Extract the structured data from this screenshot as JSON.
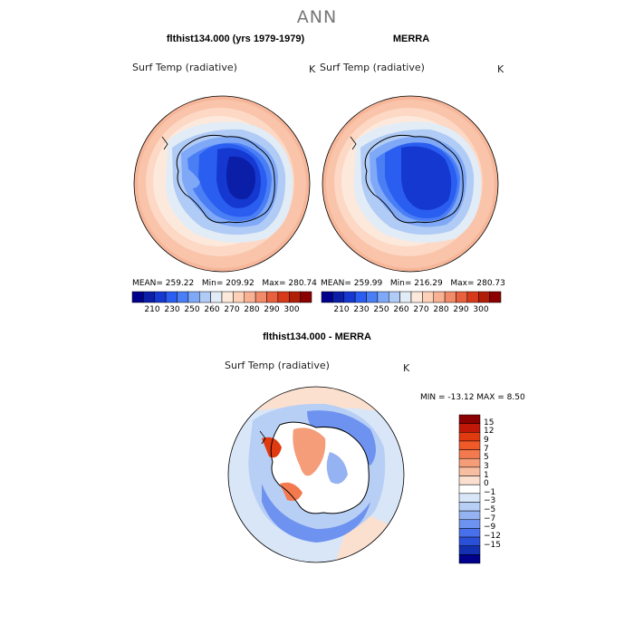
{
  "page": {
    "title": "ANN"
  },
  "panels": [
    {
      "title": "flthist134.000 (yrs 1979-1979)",
      "variable": "Surf Temp (radiative)",
      "units": "K",
      "mean_label": "MEAN=",
      "mean": "259.22",
      "min_label": "Min=",
      "min": "209.92",
      "max_label": "Max=",
      "max": "280.74"
    },
    {
      "title": "MERRA",
      "variable": "Surf Temp (radiative)",
      "units": "K",
      "mean_label": "MEAN=",
      "mean": "259.99",
      "min_label": "Min=",
      "min": "216.29",
      "max_label": "Max=",
      "max": "280.73"
    }
  ],
  "diff_panel": {
    "title": "flthist134.000 - MERRA",
    "variable": "Surf Temp (radiative)",
    "units": "K",
    "stats": "MIN = -13.12  MAX =    8.50"
  },
  "colorbar_abs": {
    "colors": [
      "#00008b",
      "#0b1ea8",
      "#1538d0",
      "#2a5ef0",
      "#4a7ef5",
      "#7fa8f7",
      "#b0cbf5",
      "#e2ecf6",
      "#fde9dc",
      "#fcd1b8",
      "#f8b193",
      "#f28b6a",
      "#e8603d",
      "#d63a1a",
      "#b01e08",
      "#8b0000"
    ],
    "tick_labels": [
      "210",
      "230",
      "250",
      "260",
      "270",
      "280",
      "290",
      "300"
    ]
  },
  "colorbar_diff": {
    "colors": [
      "#8b0000",
      "#c01808",
      "#e03a10",
      "#ef5a28",
      "#f27a4e",
      "#f59c78",
      "#f8bea2",
      "#fbe0cf",
      "#ffffff",
      "#d8e6f8",
      "#b8cff5",
      "#95b3f2",
      "#6e92ef",
      "#4870ea",
      "#2a50d8",
      "#1230b0",
      "#00008b"
    ],
    "tick_labels": [
      "15",
      "12",
      "9",
      "7",
      "5",
      "3",
      "1",
      "0",
      "−1",
      "−3",
      "−5",
      "−7",
      "−9",
      "−12",
      "−15"
    ]
  }
}
